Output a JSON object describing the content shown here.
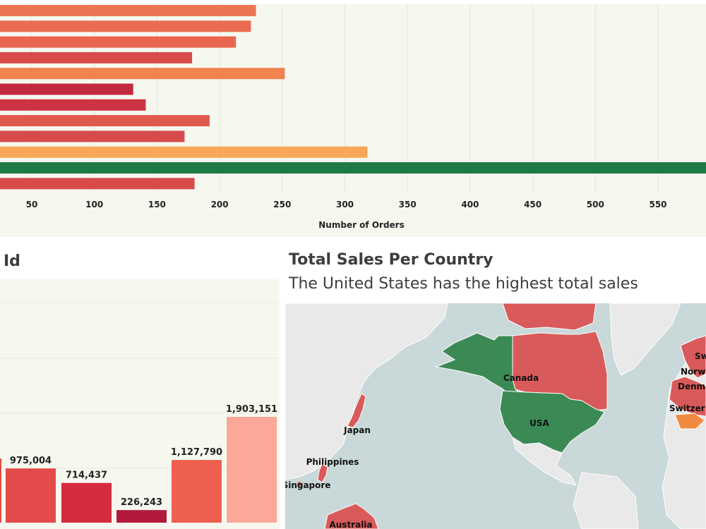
{
  "chart_data": [
    {
      "type": "bar",
      "orientation": "horizontal",
      "xlabel": "Number of Orders",
      "x_ticks": [
        50,
        100,
        150,
        200,
        250,
        300,
        350,
        400,
        450,
        500,
        550
      ],
      "xlim": [
        25,
        590
      ],
      "values": [
        229,
        225,
        213,
        178,
        252,
        131,
        141,
        192,
        172,
        318,
        600,
        180
      ],
      "colors": [
        "#ec7654",
        "#ea6d51",
        "#e8664f",
        "#d94a4b",
        "#f1834f",
        "#c42a3f",
        "#cc3443",
        "#e05a4c",
        "#d64a4b",
        "#f7a758",
        "#1e7a44",
        "#d94a4b"
      ],
      "grid": true
    },
    {
      "type": "bar",
      "title": "Id",
      "values": [
        975004,
        714437,
        226243,
        1127790,
        1903151
      ],
      "value_labels": [
        "975,004",
        "714,437",
        "226,243",
        "1,127,790",
        "1,903,151"
      ],
      "colors": [
        "#e54a4a",
        "#d42b3e",
        "#b2193a",
        "#ef5f50",
        "#fba899"
      ],
      "grid": true
    }
  ],
  "map": {
    "title": "Total Sales Per Country",
    "subtitle": "The United States has the highest total sales",
    "colors": {
      "ocean": "#c9d8d8",
      "land": "#e9e9e9",
      "high": "#3b8a55",
      "mid": "#d95a5a",
      "low": "#f08a40"
    },
    "labels": {
      "canada": "Canada",
      "usa": "USA",
      "japan": "Japan",
      "philippines": "Philippines",
      "singapore": "Singapore",
      "australia": "Australia",
      "sweden": "Sw",
      "norway": "Norw",
      "denmark": "Denm",
      "switzerland": "Switzer"
    }
  }
}
